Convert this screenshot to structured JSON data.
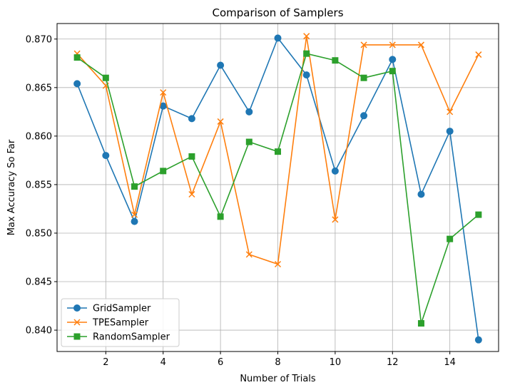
{
  "chart_data": {
    "type": "line",
    "title": "Comparison of Samplers",
    "xlabel": "Number of Trials",
    "ylabel": "Max Accuracy So Far",
    "x": [
      1,
      2,
      3,
      4,
      5,
      6,
      7,
      8,
      9,
      10,
      11,
      12,
      13,
      14,
      15
    ],
    "xlim": [
      0.3,
      15.7
    ],
    "ylim": [
      0.8378,
      0.8716
    ],
    "xticks": [
      2,
      4,
      6,
      8,
      10,
      12,
      14
    ],
    "yticks": [
      0.84,
      0.845,
      0.85,
      0.855,
      0.86,
      0.865,
      0.87
    ],
    "xtick_labels": [
      "2",
      "4",
      "6",
      "8",
      "10",
      "12",
      "14"
    ],
    "ytick_labels": [
      "0.840",
      "0.845",
      "0.850",
      "0.855",
      "0.860",
      "0.865",
      "0.870"
    ],
    "grid": true,
    "legend_position": "lower-left",
    "series": [
      {
        "name": "GridSampler",
        "color": "#1f77b4",
        "marker": "circle",
        "values": [
          0.8654,
          0.858,
          0.8512,
          0.8631,
          0.8618,
          0.8673,
          0.8625,
          0.8701,
          0.8663,
          0.8564,
          0.8621,
          0.8679,
          0.854,
          0.8605,
          0.839
        ]
      },
      {
        "name": "TPESampler",
        "color": "#ff7f0e",
        "marker": "x",
        "values": [
          0.8685,
          0.8652,
          0.8519,
          0.8645,
          0.854,
          0.8615,
          0.8478,
          0.8468,
          0.8703,
          0.8514,
          0.8694,
          0.8694,
          0.8694,
          0.8625,
          0.8684
        ]
      },
      {
        "name": "RandomSampler",
        "color": "#2ca02c",
        "marker": "square",
        "values": [
          0.8681,
          0.866,
          0.8548,
          0.8564,
          0.8579,
          0.8517,
          0.8594,
          0.8584,
          0.8685,
          0.8678,
          0.866,
          0.8667,
          0.8407,
          0.8494,
          0.8519
        ]
      }
    ]
  }
}
